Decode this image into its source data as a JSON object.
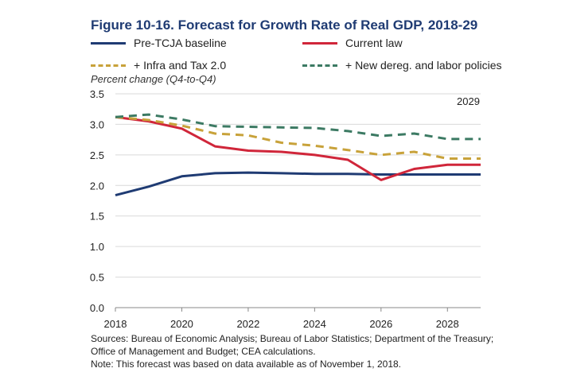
{
  "chart_data": {
    "type": "line",
    "title": "Figure 10-16. Forecast for Growth Rate of Real GDP, 2018-29",
    "ylabel": "Percent change (Q4-to-Q4)",
    "xlabel": "",
    "annotation": "2029",
    "xlim": [
      2018,
      2029
    ],
    "ylim": [
      0.0,
      3.5
    ],
    "x_ticks": [
      "2018",
      "2020",
      "2022",
      "2024",
      "2026",
      "2028"
    ],
    "y_ticks": [
      "0.0",
      "0.5",
      "1.0",
      "1.5",
      "2.0",
      "2.5",
      "3.0",
      "3.5"
    ],
    "grid": "horizontal",
    "legend_position": "top",
    "x": [
      2018,
      2019,
      2020,
      2021,
      2022,
      2023,
      2024,
      2025,
      2026,
      2027,
      2028,
      2029
    ],
    "series": [
      {
        "name": "Pre-TCJA baseline",
        "color": "#1f3b73",
        "style": "solid",
        "values": [
          1.84,
          1.98,
          2.15,
          2.2,
          2.21,
          2.2,
          2.19,
          2.19,
          2.18,
          2.18,
          2.18,
          2.18
        ]
      },
      {
        "name": "Current law",
        "color": "#d0263a",
        "style": "solid",
        "values": [
          3.12,
          3.05,
          2.93,
          2.64,
          2.57,
          2.55,
          2.5,
          2.42,
          2.09,
          2.27,
          2.34,
          2.34
        ]
      },
      {
        "name": "+ Infra and Tax 2.0",
        "color": "#c8a23a",
        "style": "dashed",
        "values": [
          3.12,
          3.07,
          2.98,
          2.85,
          2.82,
          2.7,
          2.65,
          2.58,
          2.5,
          2.55,
          2.44,
          2.44
        ]
      },
      {
        "name": "+ New dereg. and labor policies",
        "color": "#3c7a63",
        "style": "dashed",
        "values": [
          3.12,
          3.16,
          3.08,
          2.97,
          2.96,
          2.95,
          2.94,
          2.89,
          2.81,
          2.85,
          2.76,
          2.76
        ]
      }
    ],
    "sources": [
      "Sources: Bureau of Economic Analysis; Bureau of Labor Statistics; Department of the Treasury;",
      "Office of Management and Budget; CEA calculations.",
      "Note: This forecast was based on data available as of November 1, 2018."
    ]
  }
}
